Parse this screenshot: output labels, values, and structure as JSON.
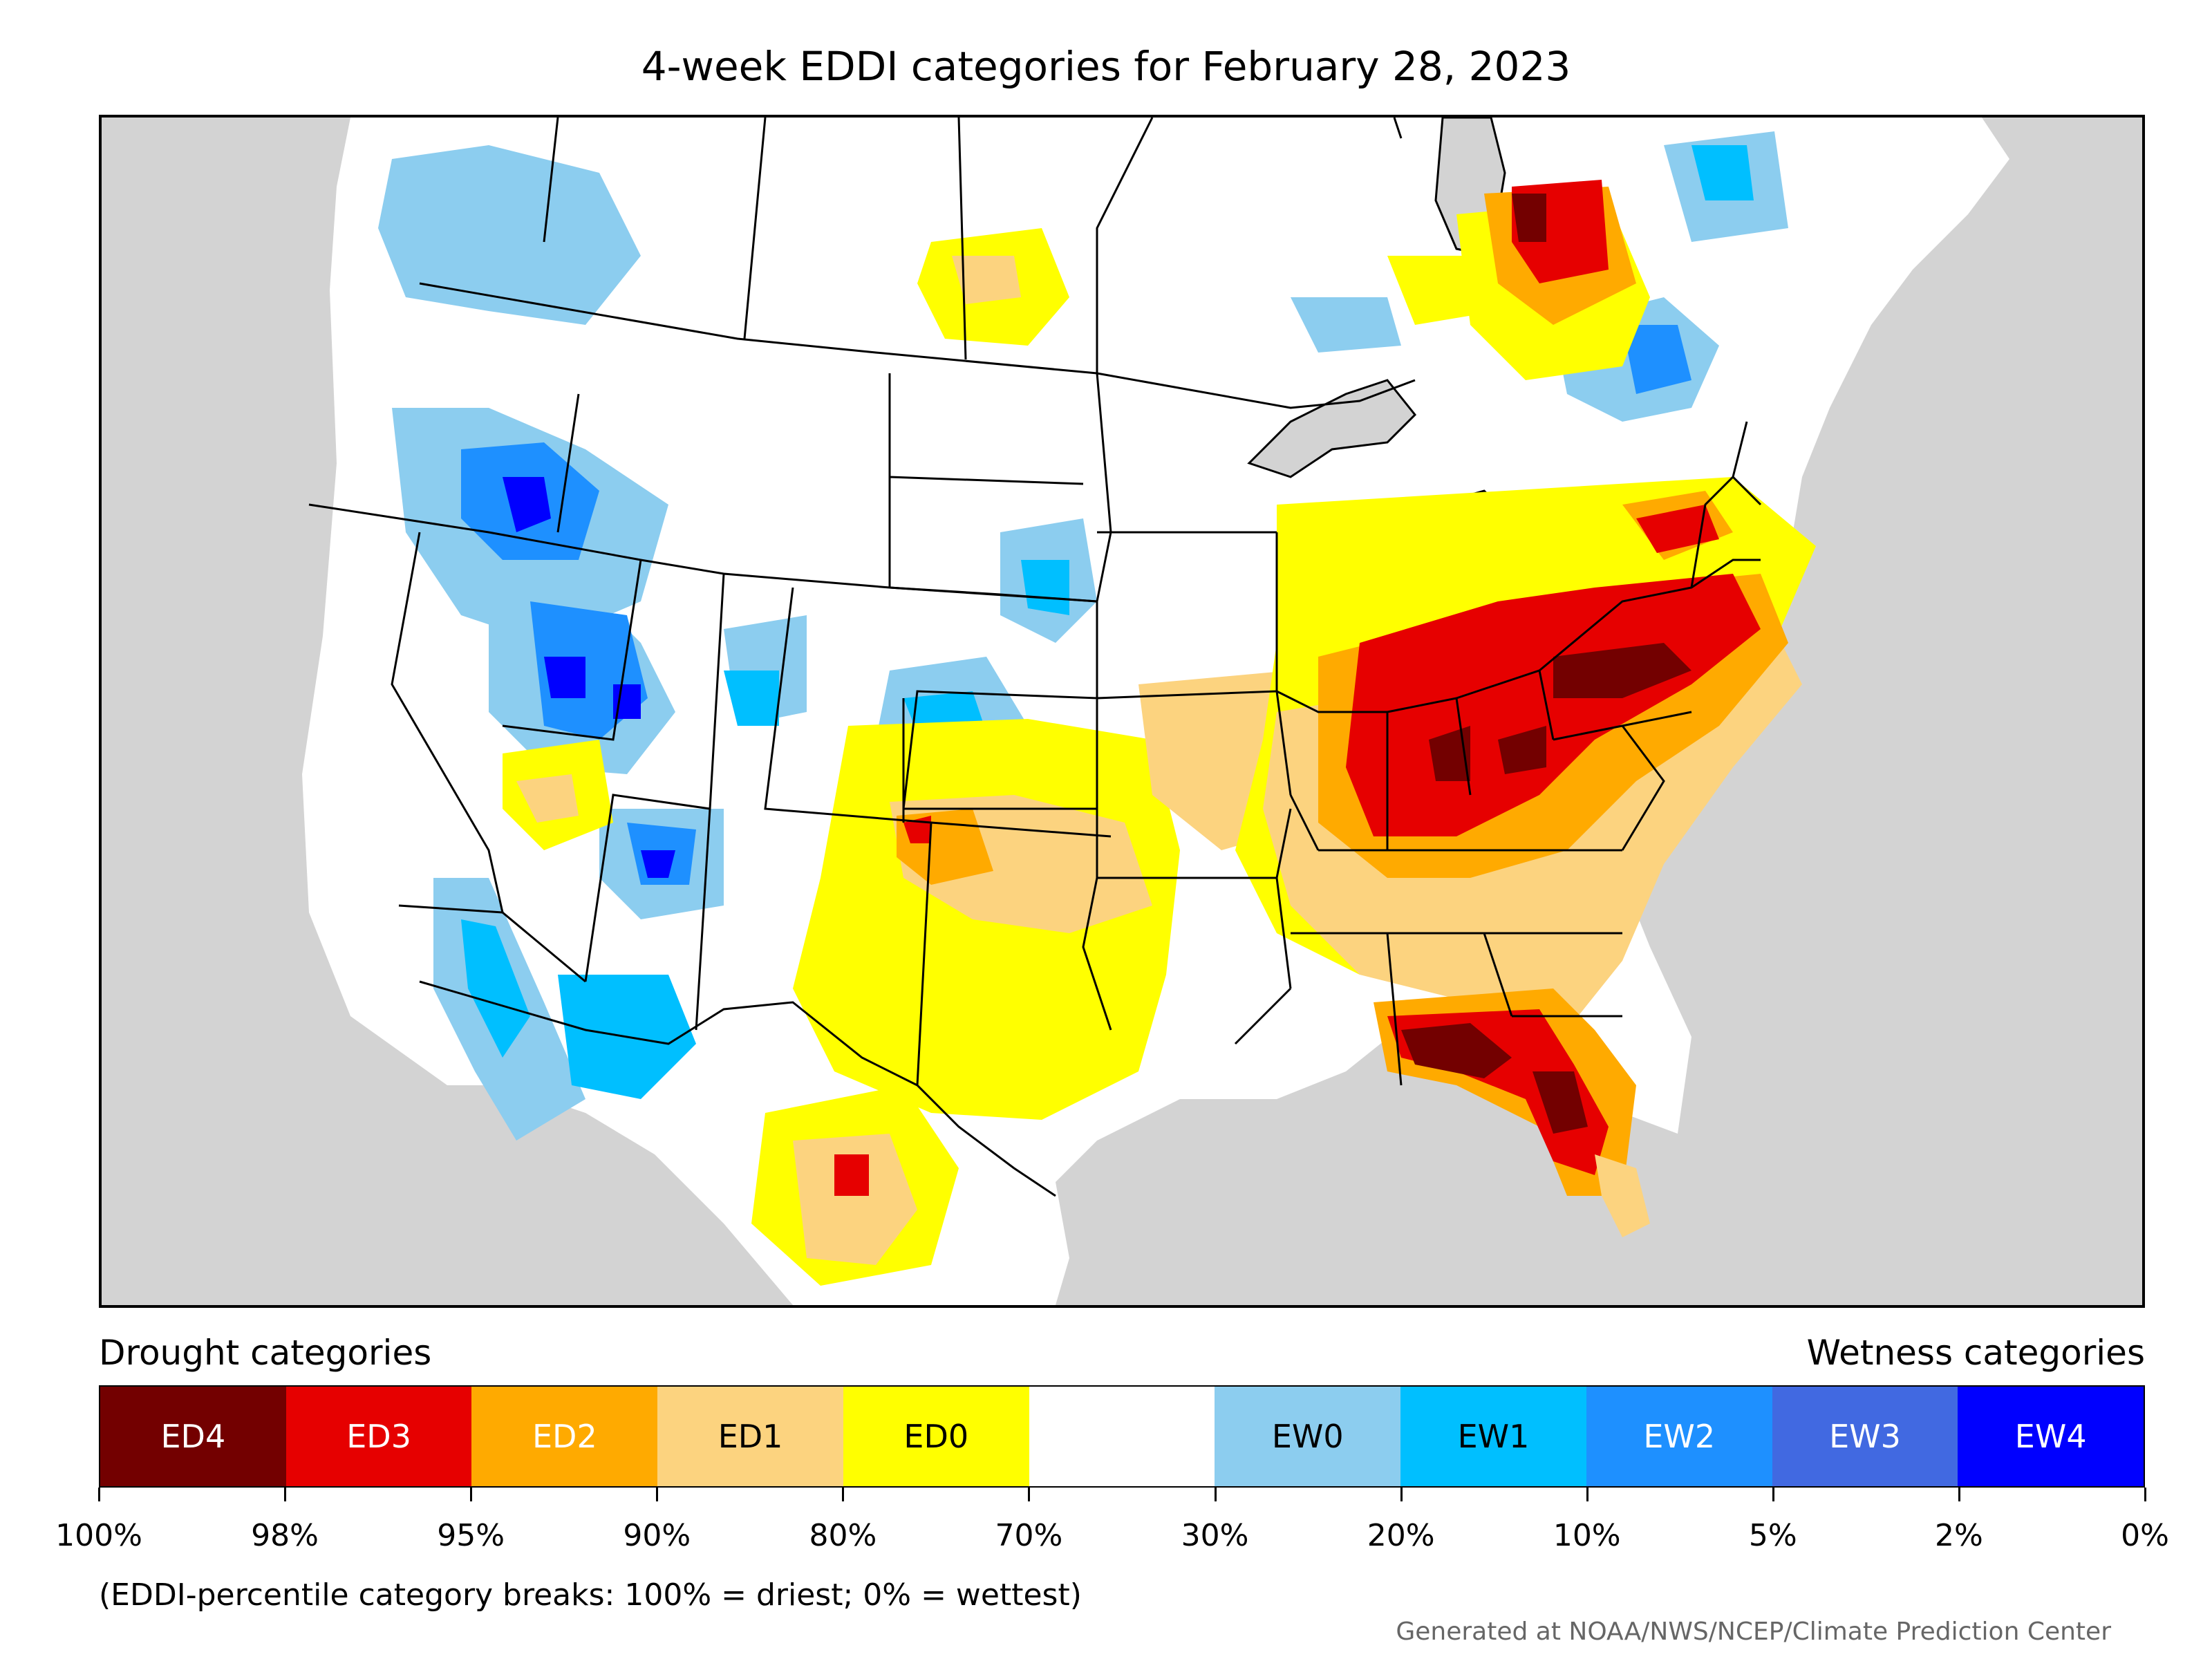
{
  "title": "4-week EDDI categories for February 28, 2023",
  "legend": {
    "drought_label": "Drought categories",
    "wetness_label": "Wetness categories",
    "categories": [
      {
        "label": "ED4",
        "color": "#730000",
        "text_color": "#ffffff"
      },
      {
        "label": "ED3",
        "color": "#e60000",
        "text_color": "#ffffff"
      },
      {
        "label": "ED2",
        "color": "#ffaa00",
        "text_color": "#ffffff"
      },
      {
        "label": "ED1",
        "color": "#fcd37f",
        "text_color": "#000000"
      },
      {
        "label": "ED0",
        "color": "#ffff00",
        "text_color": "#000000"
      },
      {
        "label": "",
        "color": "#ffffff",
        "text_color": "#000000"
      },
      {
        "label": "EW0",
        "color": "#8ccdef",
        "text_color": "#000000"
      },
      {
        "label": "EW1",
        "color": "#00bfff",
        "text_color": "#000000"
      },
      {
        "label": "EW2",
        "color": "#1e90ff",
        "text_color": "#ffffff"
      },
      {
        "label": "EW3",
        "color": "#4169e1",
        "text_color": "#ffffff"
      },
      {
        "label": "EW4",
        "color": "#0000ff",
        "text_color": "#ffffff"
      }
    ],
    "tick_labels": [
      "100%",
      "98%",
      "95%",
      "90%",
      "80%",
      "70%",
      "30%",
      "20%",
      "10%",
      "5%",
      "2%",
      "0%"
    ]
  },
  "note": "(EDDI-percentile category breaks: 100% = driest; 0% = wettest)",
  "credit": "Generated at NOAA/NWS/NCEP/Climate Prediction Center",
  "map_colors": {
    "background": "#d3d3d3",
    "land": "#ffffff",
    "border": "#000000"
  }
}
